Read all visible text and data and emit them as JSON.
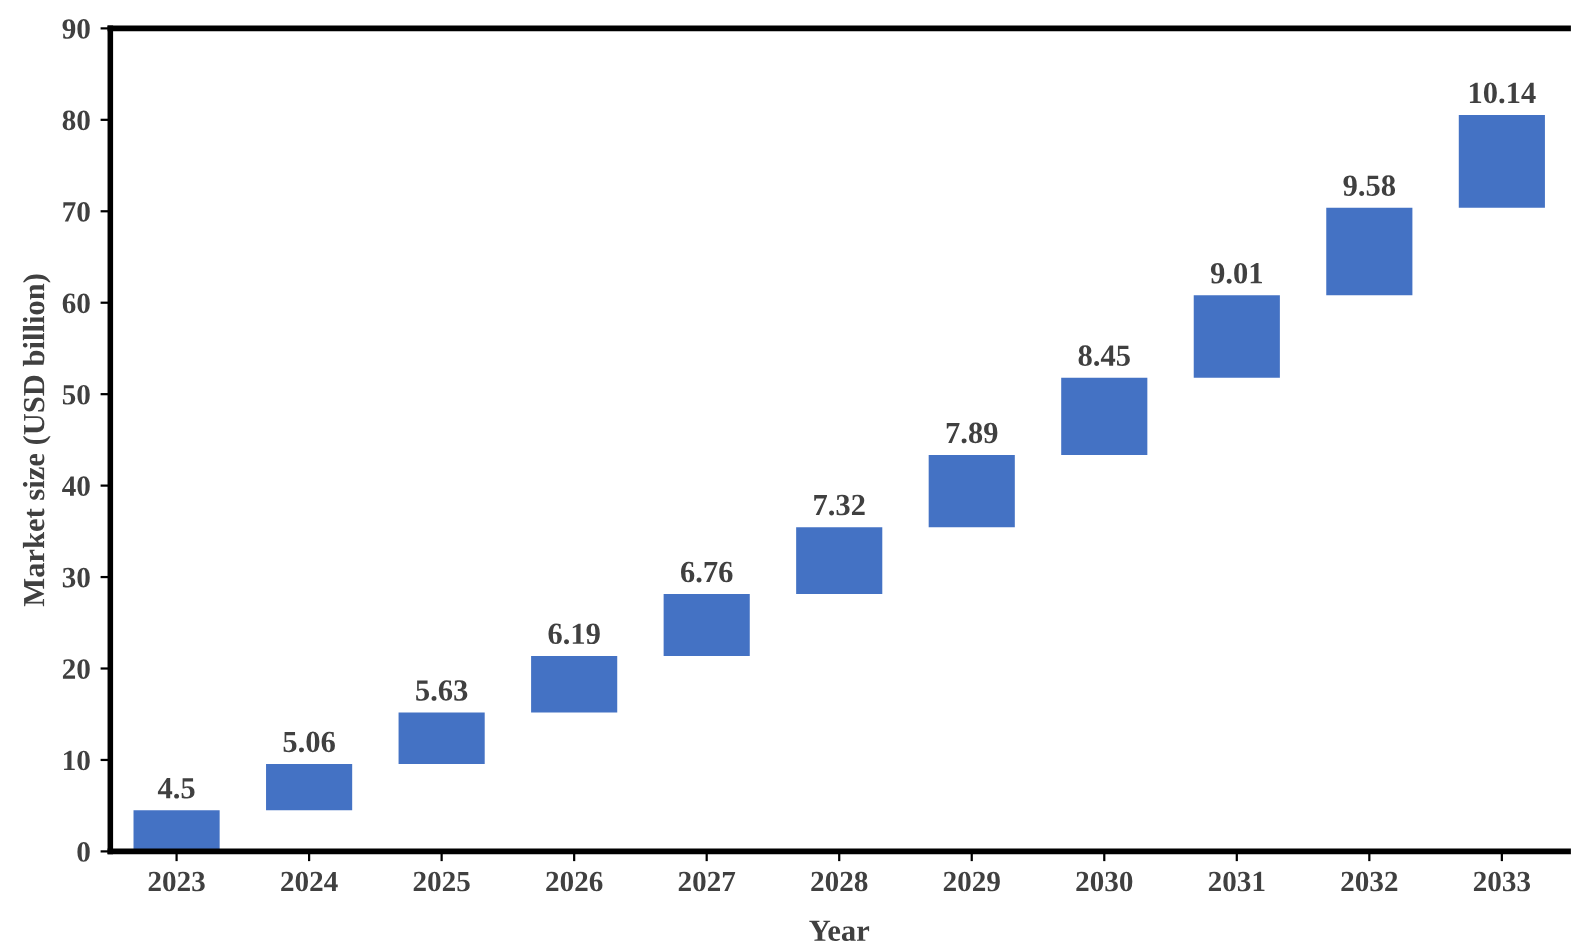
{
  "chart_data": {
    "type": "bar",
    "xlabel": "Year",
    "ylabel": "Market size (USD billion)",
    "categories": [
      "2023",
      "2024",
      "2025",
      "2026",
      "2027",
      "2028",
      "2029",
      "2030",
      "2031",
      "2032",
      "2033"
    ],
    "values": [
      4.5,
      5.06,
      5.63,
      6.19,
      6.76,
      7.32,
      7.89,
      8.45,
      9.01,
      9.58,
      10.14
    ],
    "base": [
      0,
      4.5,
      9.56,
      15.19,
      21.38,
      28.14,
      35.46,
      43.35,
      51.8,
      60.81,
      70.39
    ],
    "color": "#4472c4",
    "ylim": [
      0,
      90
    ],
    "yticks": [
      0,
      10,
      20,
      30,
      40,
      50,
      60,
      70,
      80,
      90
    ],
    "data_labels": true,
    "grid": false,
    "legend": false
  }
}
